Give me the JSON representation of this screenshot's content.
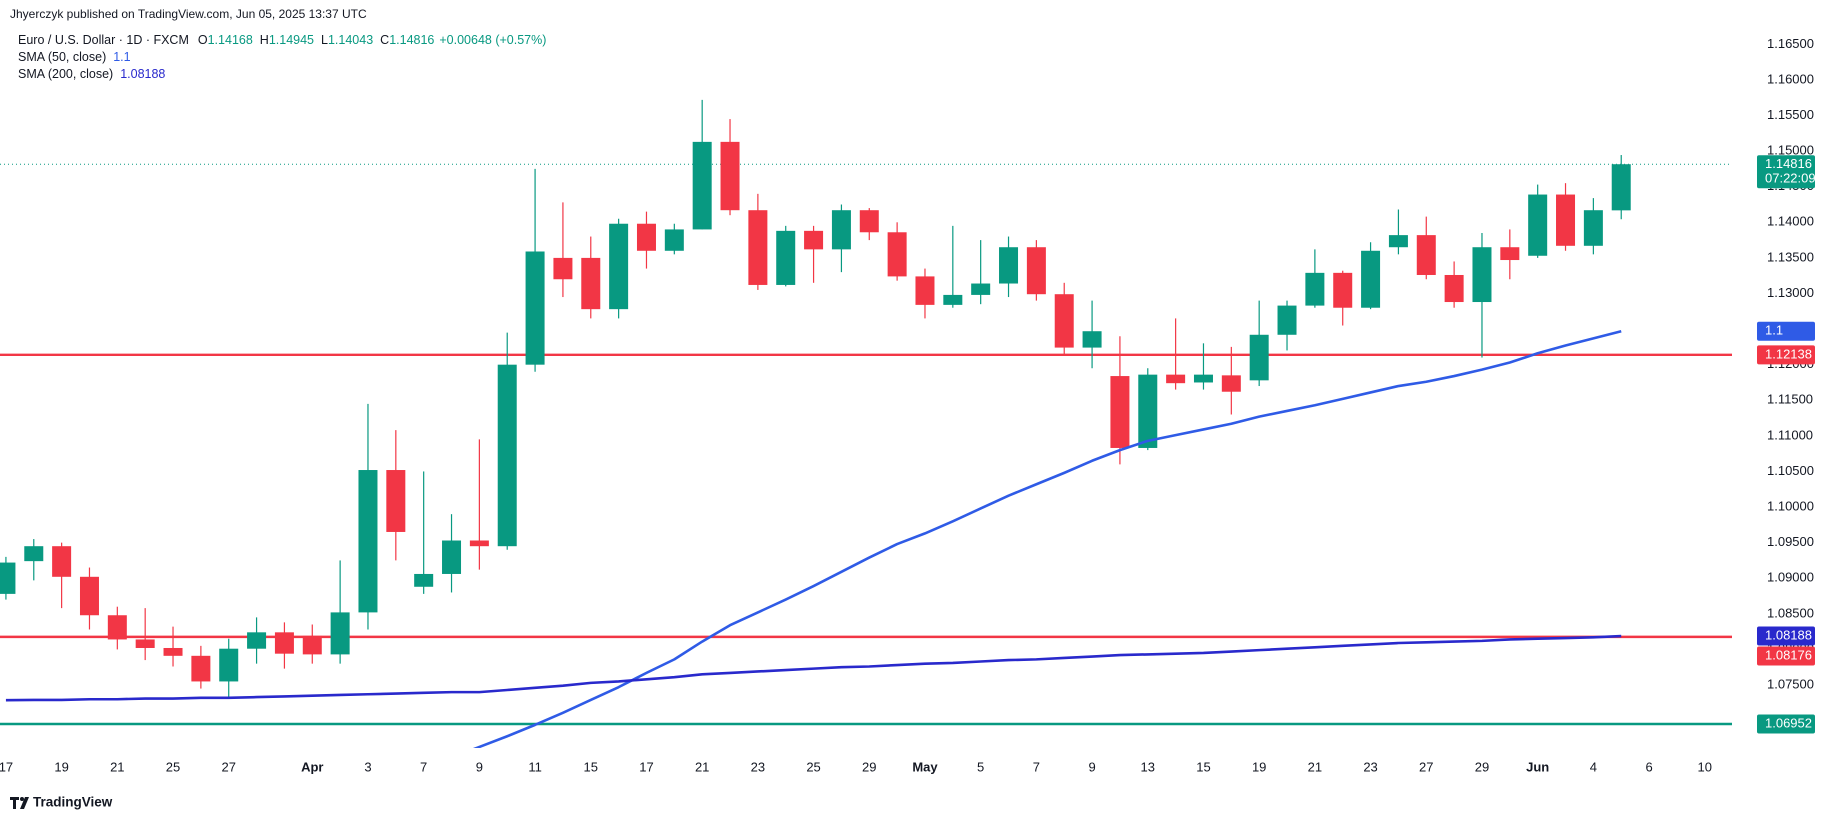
{
  "chart_data": {
    "type": "candlestick",
    "published": "Jhyerczyk published on TradingView.com, Jun 05, 2025 13:37 UTC",
    "symbol": "Euro / U.S. Dollar · 1D · FXCM",
    "ohlc_labels": [
      "O",
      "H",
      "L",
      "C"
    ],
    "change": "+0.00648 (+0.57%)",
    "countdown": "07:22:09",
    "brand": "TradingView",
    "categories": [
      "17",
      null,
      "19",
      null,
      "21",
      null,
      "25",
      null,
      "27",
      null,
      null,
      "Apr",
      null,
      "3",
      null,
      "7",
      null,
      "9",
      null,
      "11",
      null,
      "15",
      null,
      "17",
      null,
      "21",
      null,
      "23",
      null,
      "25",
      null,
      "29",
      null,
      "May",
      null,
      "5",
      null,
      "7",
      null,
      "9",
      null,
      "13",
      null,
      "15",
      null,
      "19",
      null,
      "21",
      null,
      "23",
      null,
      "27",
      null,
      "29",
      null,
      "Jun",
      null,
      "4",
      null,
      "6",
      null,
      "10",
      null
    ],
    "open": [
      1.0878,
      1.0924,
      1.0945,
      1.0902,
      1.0848,
      1.0814,
      1.0802,
      1.0791,
      1.0755,
      1.0801,
      1.0824,
      1.0819,
      1.0793,
      1.0852,
      1.1052,
      1.0888,
      1.0906,
      1.0953,
      1.0945,
      1.12,
      1.135,
      1.135,
      1.1278,
      1.1398,
      1.136,
      1.139,
      1.1513,
      1.1417,
      1.1312,
      1.1388,
      1.1362,
      1.1417,
      1.1386,
      1.1324,
      1.1284,
      1.1298,
      1.1314,
      1.1365,
      1.1299,
      1.1224,
      1.1184,
      1.1083,
      1.1186,
      1.1175,
      1.1185,
      1.1178,
      1.1242,
      1.1283,
      1.1329,
      1.128,
      1.1365,
      1.1382,
      1.1326,
      1.1288,
      1.1365,
      1.1353,
      1.1439,
      1.1367,
      1.14168,
      null,
      null,
      null,
      null
    ],
    "high": [
      1.093,
      1.0955,
      1.095,
      1.0915,
      1.086,
      1.0858,
      1.0832,
      1.0805,
      1.0815,
      1.0845,
      1.0838,
      1.0835,
      1.0925,
      1.1145,
      1.1108,
      1.105,
      1.099,
      1.1095,
      1.1245,
      1.1475,
      1.1428,
      1.138,
      1.1405,
      1.1415,
      1.1398,
      1.1572,
      1.1545,
      1.144,
      1.1395,
      1.1395,
      1.1425,
      1.142,
      1.14,
      1.1335,
      1.1395,
      1.1375,
      1.138,
      1.1375,
      1.1315,
      1.129,
      1.124,
      1.1195,
      1.1265,
      1.123,
      1.1225,
      1.129,
      1.129,
      1.1362,
      1.1332,
      1.1372,
      1.1418,
      1.1408,
      1.1345,
      1.1385,
      1.139,
      1.1453,
      1.1455,
      1.1434,
      1.14945,
      null,
      null,
      null,
      null
    ],
    "low": [
      1.087,
      1.0897,
      1.0858,
      1.0828,
      1.08,
      1.0785,
      1.0776,
      1.0745,
      1.0733,
      1.078,
      1.0773,
      1.078,
      1.078,
      1.0828,
      1.0925,
      1.0878,
      1.088,
      1.0912,
      1.094,
      1.119,
      1.1295,
      1.1265,
      1.1265,
      1.1335,
      1.1355,
      1.139,
      1.141,
      1.1305,
      1.131,
      1.1315,
      1.133,
      1.1375,
      1.1318,
      1.1265,
      1.128,
      1.1285,
      1.1295,
      1.129,
      1.1215,
      1.1195,
      1.106,
      1.108,
      1.1165,
      1.1165,
      1.113,
      1.117,
      1.122,
      1.128,
      1.1255,
      1.1278,
      1.1355,
      1.132,
      1.128,
      1.121,
      1.132,
      1.135,
      1.136,
      1.1355,
      1.14043,
      null,
      null,
      null,
      null
    ],
    "close": [
      1.0922,
      1.0945,
      1.0902,
      1.0848,
      1.0814,
      1.0802,
      1.0791,
      1.0755,
      1.0801,
      1.0824,
      1.0794,
      1.0793,
      1.0852,
      1.1052,
      1.0965,
      1.0906,
      1.0953,
      1.0945,
      1.12,
      1.1359,
      1.132,
      1.1278,
      1.1398,
      1.136,
      1.139,
      1.1513,
      1.1417,
      1.1312,
      1.1388,
      1.1362,
      1.1417,
      1.1386,
      1.1324,
      1.1284,
      1.1298,
      1.1314,
      1.1365,
      1.1299,
      1.1224,
      1.1247,
      1.1083,
      1.1186,
      1.1174,
      1.1186,
      1.1162,
      1.1242,
      1.1283,
      1.1329,
      1.128,
      1.136,
      1.1382,
      1.1326,
      1.1288,
      1.1365,
      1.1347,
      1.1439,
      1.1367,
      1.1417,
      1.14816,
      null,
      null,
      null,
      null
    ],
    "up_color": "#089981",
    "down_color": "#f23645",
    "sma": [
      {
        "name": "SMA (50, close)",
        "color": "#2f5be6",
        "last_label": "1.1",
        "values": [
          null,
          null,
          null,
          null,
          null,
          null,
          null,
          null,
          null,
          null,
          null,
          null,
          null,
          null,
          null,
          null,
          1.0648,
          1.0663,
          1.0678,
          1.0694,
          1.0711,
          1.0729,
          1.0747,
          1.0767,
          1.0786,
          1.0811,
          1.0834,
          1.0852,
          1.087,
          1.0889,
          1.0909,
          1.0929,
          1.0948,
          1.0963,
          1.098,
          1.0998,
          1.1016,
          1.1032,
          1.1048,
          1.1065,
          1.108,
          1.1093,
          1.1101,
          1.1109,
          1.1117,
          1.1127,
          1.1135,
          1.1143,
          1.1152,
          1.1161,
          1.117,
          1.1176,
          1.1184,
          1.1193,
          1.1203,
          1.1216,
          1.1227,
          1.1237,
          1.1247,
          null,
          null,
          null,
          null
        ]
      },
      {
        "name": "SMA (200, close)",
        "color": "#2929cc",
        "values": [
          1.07287,
          1.0729,
          1.0729,
          1.073,
          1.073,
          1.0731,
          1.0731,
          1.0732,
          1.0732,
          1.0733,
          1.0734,
          1.0735,
          1.0736,
          1.0737,
          1.0738,
          1.0739,
          1.074,
          1.074,
          1.0743,
          1.0746,
          1.0749,
          1.0753,
          1.0755,
          1.0758,
          1.0761,
          1.0765,
          1.0767,
          1.0769,
          1.0771,
          1.0773,
          1.0775,
          1.0776,
          1.0778,
          1.078,
          1.0781,
          1.0783,
          1.0785,
          1.0786,
          1.0788,
          1.079,
          1.0792,
          1.0793,
          1.0794,
          1.0795,
          1.0797,
          1.0799,
          1.0801,
          1.0803,
          1.0805,
          1.0807,
          1.0809,
          1.081,
          1.0811,
          1.0812,
          1.0814,
          1.0815,
          1.0816,
          1.0817,
          1.08188,
          null,
          null,
          null,
          null
        ]
      }
    ],
    "levels": [
      {
        "value": 1.12138,
        "color": "#f23645"
      },
      {
        "value": 1.08176,
        "color": "#f23645"
      },
      {
        "value": 1.06952,
        "color": "#089981"
      }
    ],
    "ylim": [
      1.06615,
      1.17123
    ],
    "yticks": [
      {
        "value": 1.165,
        "label": "1.16500"
      },
      {
        "value": 1.16,
        "label": "1.16000"
      },
      {
        "value": 1.155,
        "label": "1.15500"
      },
      {
        "value": 1.15,
        "label": "1.15000"
      },
      {
        "value": 1.145,
        "label": "1.14500"
      },
      {
        "value": 1.14,
        "label": "1.14000"
      },
      {
        "value": 1.135,
        "label": "1.13500"
      },
      {
        "value": 1.13,
        "label": "1.13000"
      },
      {
        "value": 1.125,
        "label": "1.12500"
      },
      {
        "value": 1.12,
        "label": "1.12000"
      },
      {
        "value": 1.115,
        "label": "1.11500"
      },
      {
        "value": 1.11,
        "label": "1.11000"
      },
      {
        "value": 1.105,
        "label": "1.10500"
      },
      {
        "value": 1.1,
        "label": "1.10000"
      },
      {
        "value": 1.095,
        "label": "1.09500"
      },
      {
        "value": 1.09,
        "label": "1.09000"
      },
      {
        "value": 1.085,
        "label": "1.08500"
      },
      {
        "value": 1.08,
        "label": "1.08000"
      },
      {
        "value": 1.075,
        "label": "1.07500"
      }
    ],
    "grid": false
  }
}
